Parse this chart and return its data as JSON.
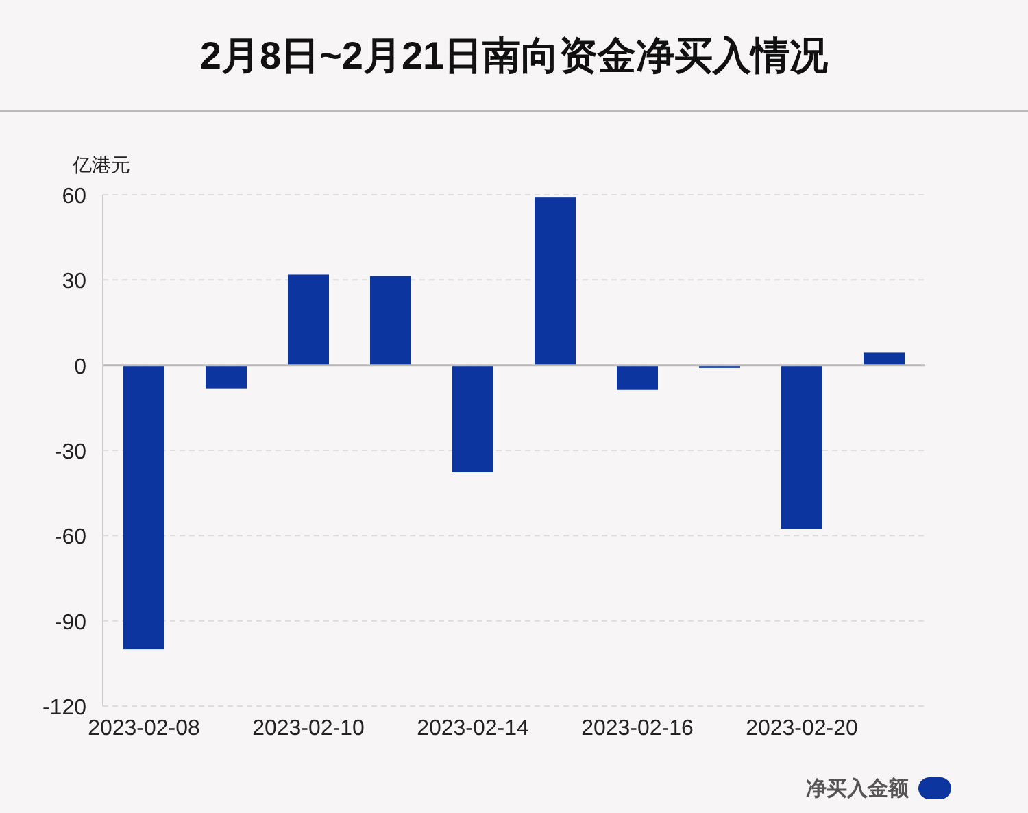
{
  "chart_data": {
    "type": "bar",
    "title": "2月8日~2月21日南向资金净买入情况",
    "ylabel": "亿港元",
    "categories": [
      "2023-02-08",
      null,
      "2023-02-10",
      null,
      "2023-02-14",
      null,
      "2023-02-16",
      null,
      "2023-02-20",
      null
    ],
    "series": [
      {
        "name": "净买入金额",
        "color": "#0d35a0",
        "values": [
          -100,
          -8.2,
          31.9,
          31.4,
          -37.7,
          59,
          -8.7,
          -1,
          -57.6,
          4.4
        ]
      }
    ],
    "ylim": [
      -120,
      60
    ],
    "yticks": [
      -120,
      -90,
      -60,
      -30,
      0,
      30,
      60
    ],
    "grid": "y",
    "legend": "bottom right"
  }
}
